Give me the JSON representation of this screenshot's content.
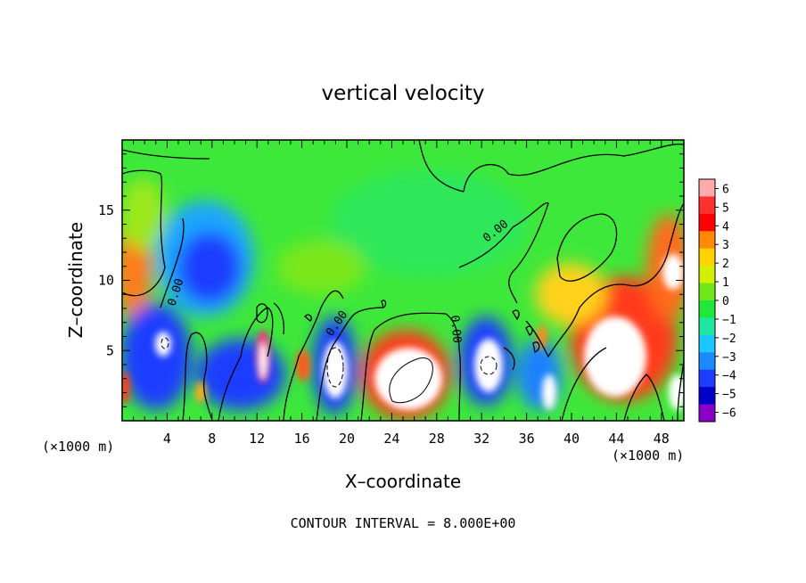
{
  "chart_data": {
    "type": "heatmap",
    "title": "vertical velocity",
    "xlabel": "X–coordinate",
    "ylabel": "Z–coordinate",
    "x_unit_left": "(×1000 m)",
    "x_unit_right": "(×1000 m)",
    "footer": "CONTOUR INTERVAL = 8.000E+00",
    "xlim": [
      0,
      50
    ],
    "ylim": [
      0,
      20
    ],
    "x_ticks": [
      4,
      8,
      12,
      16,
      20,
      24,
      28,
      32,
      36,
      40,
      44,
      48
    ],
    "y_ticks": [
      5,
      10,
      15
    ],
    "x_tick_labels": [
      "4",
      "8",
      "12",
      "16",
      "20",
      "24",
      "28",
      "32",
      "36",
      "40",
      "44",
      "48"
    ],
    "y_tick_labels": [
      "5",
      "10",
      "15"
    ],
    "colorbar": {
      "min": -6,
      "max": 6,
      "labels": [
        "6",
        "5",
        "4",
        "3",
        "2",
        "1",
        "0",
        "−1",
        "−2",
        "−3",
        "−4",
        "−5",
        "−6"
      ]
    },
    "contour_label": "0.00",
    "features": [
      {
        "x": 4.5,
        "z": 5.5,
        "w": -6
      },
      {
        "x": 10,
        "z": 11,
        "w": -4
      },
      {
        "x": 12,
        "z": 4.5,
        "w": -5
      },
      {
        "x": 18.5,
        "z": 4.5,
        "w": -5
      },
      {
        "x": 25.5,
        "z": 3.5,
        "w": 6
      },
      {
        "x": 32,
        "z": 4.2,
        "w": -6
      },
      {
        "x": 38.5,
        "z": 2.5,
        "w": -5
      },
      {
        "x": 44,
        "z": 5,
        "w": 6
      },
      {
        "x": 49,
        "z": 10,
        "w": 5
      },
      {
        "x": 0.5,
        "z": 12,
        "w": 3
      }
    ]
  }
}
